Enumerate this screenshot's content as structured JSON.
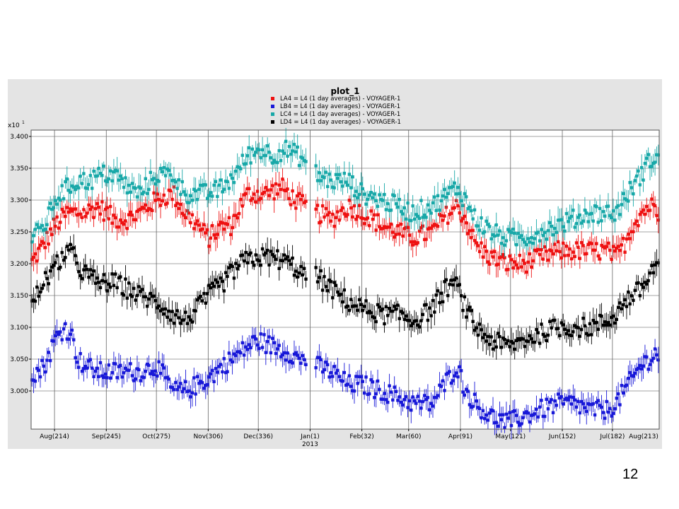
{
  "slide": {
    "page_number": "12"
  },
  "chart_data": {
    "type": "scatter",
    "title": "plot_1",
    "y_exponent_label": "x10",
    "y_exponent": "1",
    "ylim": [
      2.94,
      3.41
    ],
    "xlim": [
      200,
      576
    ],
    "grid": true,
    "legend_position": "top-center",
    "yticks": [
      {
        "value": 3.0,
        "label": "3.000"
      },
      {
        "value": 3.05,
        "label": "3.050"
      },
      {
        "value": 3.1,
        "label": "3.100"
      },
      {
        "value": 3.15,
        "label": "3.150"
      },
      {
        "value": 3.2,
        "label": "3.200"
      },
      {
        "value": 3.25,
        "label": "3.250"
      },
      {
        "value": 3.3,
        "label": "3.300"
      },
      {
        "value": 3.35,
        "label": "3.350"
      },
      {
        "value": 3.4,
        "label": "3.400"
      }
    ],
    "xticks": [
      {
        "day": 214,
        "label": "Aug(214)"
      },
      {
        "day": 245,
        "label": "Sep(245)"
      },
      {
        "day": 275,
        "label": "Oct(275)"
      },
      {
        "day": 306,
        "label": "Nov(306)"
      },
      {
        "day": 336,
        "label": "Dec(336)"
      },
      {
        "day": 367,
        "label": "Jan(1)",
        "sublabel": "2013"
      },
      {
        "day": 398,
        "label": "Feb(32)"
      },
      {
        "day": 426,
        "label": "Mar(60)"
      },
      {
        "day": 457,
        "label": "Apr(91)"
      },
      {
        "day": 487,
        "label": "May(121)"
      },
      {
        "day": 518,
        "label": "Jun(152)"
      },
      {
        "day": 548,
        "label": "Jul(182)"
      },
      {
        "day": 579,
        "label": "Aug(213)"
      }
    ],
    "gap": [
      365,
      370
    ],
    "series": [
      {
        "name": "LA4 = L4 (1 day averages) - VOYAGER-1",
        "color": "#ee1111",
        "knots": [
          [
            200,
            3.2
          ],
          [
            205,
            3.22
          ],
          [
            210,
            3.24
          ],
          [
            214,
            3.26
          ],
          [
            218,
            3.27
          ],
          [
            222,
            3.28
          ],
          [
            226,
            3.28
          ],
          [
            232,
            3.28
          ],
          [
            240,
            3.29
          ],
          [
            250,
            3.27
          ],
          [
            258,
            3.27
          ],
          [
            265,
            3.28
          ],
          [
            275,
            3.3
          ],
          [
            285,
            3.31
          ],
          [
            292,
            3.28
          ],
          [
            300,
            3.26
          ],
          [
            306,
            3.24
          ],
          [
            315,
            3.26
          ],
          [
            320,
            3.26
          ],
          [
            325,
            3.29
          ],
          [
            330,
            3.31
          ],
          [
            340,
            3.31
          ],
          [
            350,
            3.32
          ],
          [
            358,
            3.3
          ],
          [
            364,
            3.29
          ],
          [
            371,
            3.28
          ],
          [
            380,
            3.27
          ],
          [
            390,
            3.29
          ],
          [
            398,
            3.28
          ],
          [
            410,
            3.26
          ],
          [
            420,
            3.25
          ],
          [
            428,
            3.24
          ],
          [
            440,
            3.25
          ],
          [
            450,
            3.28
          ],
          [
            455,
            3.29
          ],
          [
            460,
            3.27
          ],
          [
            466,
            3.23
          ],
          [
            475,
            3.21
          ],
          [
            485,
            3.2
          ],
          [
            495,
            3.2
          ],
          [
            505,
            3.21
          ],
          [
            515,
            3.22
          ],
          [
            525,
            3.22
          ],
          [
            535,
            3.22
          ],
          [
            545,
            3.22
          ],
          [
            550,
            3.21
          ],
          [
            555,
            3.23
          ],
          [
            560,
            3.26
          ],
          [
            565,
            3.28
          ],
          [
            570,
            3.29
          ],
          [
            574,
            3.29
          ],
          [
            576,
            3.28
          ]
        ]
      },
      {
        "name": "LB4 = L4 (1 day averages) - VOYAGER-1",
        "color": "#1818d8",
        "knots": [
          [
            200,
            3.03
          ],
          [
            205,
            3.03
          ],
          [
            210,
            3.05
          ],
          [
            214,
            3.08
          ],
          [
            220,
            3.1
          ],
          [
            224,
            3.09
          ],
          [
            228,
            3.05
          ],
          [
            232,
            3.04
          ],
          [
            240,
            3.03
          ],
          [
            250,
            3.03
          ],
          [
            258,
            3.03
          ],
          [
            265,
            3.03
          ],
          [
            275,
            3.04
          ],
          [
            285,
            3.0
          ],
          [
            292,
            3.0
          ],
          [
            300,
            3.01
          ],
          [
            306,
            3.02
          ],
          [
            315,
            3.04
          ],
          [
            325,
            3.06
          ],
          [
            335,
            3.08
          ],
          [
            345,
            3.07
          ],
          [
            355,
            3.06
          ],
          [
            360,
            3.05
          ],
          [
            364,
            3.05
          ],
          [
            371,
            3.04
          ],
          [
            380,
            3.03
          ],
          [
            390,
            3.01
          ],
          [
            398,
            3.01
          ],
          [
            410,
            3.0
          ],
          [
            420,
            2.99
          ],
          [
            430,
            2.98
          ],
          [
            440,
            2.98
          ],
          [
            450,
            3.02
          ],
          [
            455,
            3.04
          ],
          [
            460,
            3.0
          ],
          [
            466,
            2.98
          ],
          [
            475,
            2.96
          ],
          [
            485,
            2.95
          ],
          [
            495,
            2.96
          ],
          [
            505,
            2.97
          ],
          [
            515,
            2.98
          ],
          [
            525,
            2.98
          ],
          [
            535,
            2.97
          ],
          [
            545,
            2.97
          ],
          [
            550,
            2.98
          ],
          [
            555,
            3.0
          ],
          [
            560,
            3.02
          ],
          [
            565,
            3.04
          ],
          [
            570,
            3.05
          ],
          [
            574,
            3.06
          ],
          [
            576,
            3.05
          ]
        ]
      },
      {
        "name": "LC4 = L4 (1 day averages) - VOYAGER-1",
        "color": "#18a8a8",
        "knots": [
          [
            200,
            3.24
          ],
          [
            205,
            3.25
          ],
          [
            210,
            3.27
          ],
          [
            214,
            3.3
          ],
          [
            218,
            3.31
          ],
          [
            222,
            3.32
          ],
          [
            228,
            3.33
          ],
          [
            235,
            3.33
          ],
          [
            242,
            3.34
          ],
          [
            250,
            3.34
          ],
          [
            258,
            3.32
          ],
          [
            265,
            3.31
          ],
          [
            275,
            3.34
          ],
          [
            285,
            3.34
          ],
          [
            292,
            3.31
          ],
          [
            300,
            3.31
          ],
          [
            306,
            3.31
          ],
          [
            315,
            3.32
          ],
          [
            322,
            3.34
          ],
          [
            330,
            3.37
          ],
          [
            338,
            3.38
          ],
          [
            345,
            3.37
          ],
          [
            352,
            3.38
          ],
          [
            360,
            3.37
          ],
          [
            364,
            3.36
          ],
          [
            371,
            3.34
          ],
          [
            380,
            3.33
          ],
          [
            390,
            3.33
          ],
          [
            398,
            3.31
          ],
          [
            410,
            3.3
          ],
          [
            420,
            3.29
          ],
          [
            428,
            3.28
          ],
          [
            440,
            3.29
          ],
          [
            450,
            3.31
          ],
          [
            455,
            3.32
          ],
          [
            460,
            3.3
          ],
          [
            466,
            3.27
          ],
          [
            475,
            3.25
          ],
          [
            485,
            3.24
          ],
          [
            495,
            3.24
          ],
          [
            505,
            3.25
          ],
          [
            515,
            3.26
          ],
          [
            525,
            3.27
          ],
          [
            535,
            3.28
          ],
          [
            545,
            3.28
          ],
          [
            550,
            3.28
          ],
          [
            555,
            3.3
          ],
          [
            560,
            3.32
          ],
          [
            565,
            3.34
          ],
          [
            570,
            3.36
          ],
          [
            574,
            3.37
          ],
          [
            576,
            3.37
          ]
        ]
      },
      {
        "name": "LD4 = L4 (1 day averages) - VOYAGER-1",
        "color": "#000000",
        "knots": [
          [
            200,
            3.13
          ],
          [
            205,
            3.16
          ],
          [
            210,
            3.18
          ],
          [
            214,
            3.19
          ],
          [
            218,
            3.21
          ],
          [
            222,
            3.22
          ],
          [
            226,
            3.21
          ],
          [
            230,
            3.19
          ],
          [
            240,
            3.17
          ],
          [
            250,
            3.17
          ],
          [
            258,
            3.16
          ],
          [
            265,
            3.15
          ],
          [
            275,
            3.14
          ],
          [
            285,
            3.12
          ],
          [
            292,
            3.11
          ],
          [
            300,
            3.13
          ],
          [
            306,
            3.15
          ],
          [
            315,
            3.17
          ],
          [
            325,
            3.2
          ],
          [
            335,
            3.21
          ],
          [
            345,
            3.21
          ],
          [
            355,
            3.2
          ],
          [
            360,
            3.19
          ],
          [
            364,
            3.18
          ],
          [
            371,
            3.18
          ],
          [
            380,
            3.16
          ],
          [
            390,
            3.14
          ],
          [
            398,
            3.13
          ],
          [
            410,
            3.12
          ],
          [
            420,
            3.12
          ],
          [
            430,
            3.11
          ],
          [
            440,
            3.13
          ],
          [
            448,
            3.16
          ],
          [
            452,
            3.17
          ],
          [
            456,
            3.16
          ],
          [
            460,
            3.13
          ],
          [
            466,
            3.1
          ],
          [
            475,
            3.08
          ],
          [
            485,
            3.07
          ],
          [
            495,
            3.08
          ],
          [
            505,
            3.09
          ],
          [
            515,
            3.1
          ],
          [
            525,
            3.1
          ],
          [
            535,
            3.1
          ],
          [
            545,
            3.11
          ],
          [
            550,
            3.12
          ],
          [
            555,
            3.14
          ],
          [
            560,
            3.15
          ],
          [
            565,
            3.16
          ],
          [
            570,
            3.18
          ],
          [
            574,
            3.2
          ],
          [
            576,
            3.2
          ]
        ]
      }
    ]
  }
}
